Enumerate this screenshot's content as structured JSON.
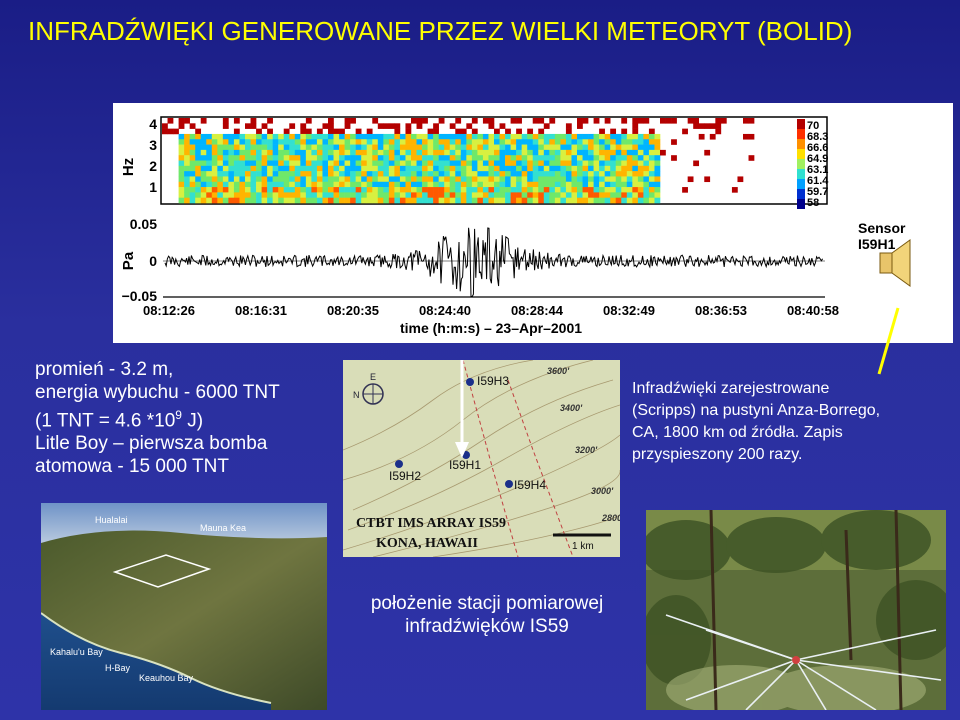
{
  "title": "INFRADŹWIĘKI GENEROWANE PRZEZ WIELKI METEORYT (BOLID)",
  "spectrogram": {
    "y_axis_label": "Hz",
    "y_ticks": [
      "4",
      "3",
      "2",
      "1"
    ],
    "colorbar_values": [
      "70",
      "68.3",
      "66.6",
      "64.9",
      "63.1",
      "61.4",
      "59.7",
      "58"
    ]
  },
  "waveform": {
    "y_axis_label": "Pa",
    "y_ticks": [
      "0.05",
      "0",
      "−0.05"
    ],
    "x_ticks": [
      "08:12:26",
      "08:16:31",
      "08:20:35",
      "08:24:40",
      "08:28:44",
      "08:32:49",
      "08:36:53",
      "08:40:58"
    ],
    "x_axis_label": "time (h:m:s) – 23–Apr–2001",
    "sensor_label": "Sensor",
    "sensor_name": "I59H1"
  },
  "left_text": {
    "line1": "promień - 3.2 m,",
    "line2": "energia wybuchu - 6000 TNT",
    "line3_pre": "(1 TNT = 4.6 *10",
    "line3_sup": "9",
    "line3_post": " J)",
    "line4": "Litle Boy – pierwsza bomba",
    "line5": "atomowa  - 15 000 TNT"
  },
  "right_text": {
    "line1": "Infradźwięki zarejestrowane",
    "line2": "(Scripps) na pustyni Anza-Borrego,",
    "line3": "CA, 1800 km od źródła. Zapis",
    "line4": "przyspieszony 200 razy."
  },
  "map": {
    "stations": [
      "I59H3",
      "I59H1",
      "I59H2",
      "I59H4"
    ],
    "contours": [
      "3600'",
      "3400'",
      "3200'",
      "3000'",
      "2800'"
    ],
    "north": "N",
    "east": "E",
    "caption_line1": "CTBT IMS ARRAY IS59",
    "caption_line2": "KONA, HAWAII",
    "scale_label": "1 km"
  },
  "island_photo": {
    "labels": [
      "Hualalai",
      "Mauna Kea",
      "Kahalu'u Bay",
      "H-Bay",
      "Keauhou Bay"
    ]
  },
  "station_caption": {
    "line1": "położenie stacji pomiarowej",
    "line2": "infradźwięków IS59"
  },
  "icons": {
    "speaker": "speaker-icon",
    "compass": "compass-icon"
  },
  "colors": {
    "title": "#ffff00",
    "background": "#232896",
    "text": "#ffffff"
  }
}
